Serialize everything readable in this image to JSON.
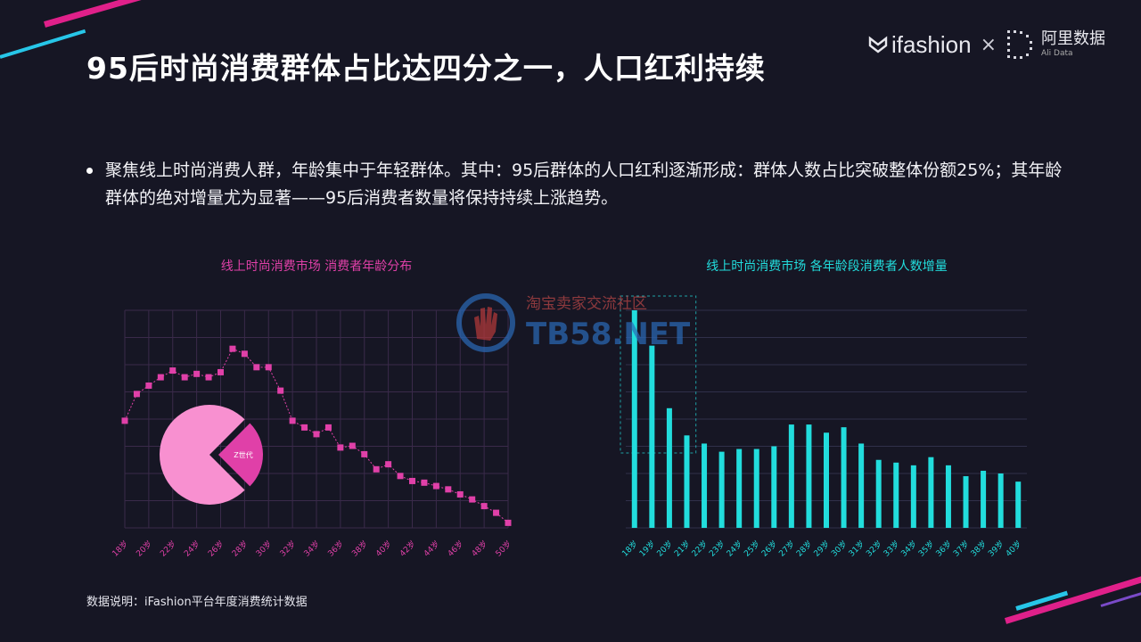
{
  "header": {
    "title": "95后时尚消费群体占比达四分之一，人口红利持续",
    "logo_brand": "ifashion",
    "logo_times": "×",
    "logo_ali_cn": "阿里数据",
    "logo_ali_en": "Ali Data"
  },
  "bullet": "聚焦线上时尚消费人群，年龄集中于年轻群体。其中：95后群体的人口红利逐渐形成：群体人数占比突破整体份额25%；其年龄群体的绝对增量尤为显著——95后消费者数量将保持持续上涨趋势。",
  "watermark": {
    "cn": "淘宝卖家交流社区",
    "en": "TB58.NET"
  },
  "footnote": "数据说明：iFashion平台年度消费统计数据",
  "colors": {
    "pink": "#e040a8",
    "cyan": "#22dddd",
    "background": "#161624"
  },
  "chart_data": [
    {
      "type": "line",
      "title": "线上时尚消费市场 消费者年龄分布",
      "x": [
        18,
        19,
        20,
        21,
        22,
        23,
        24,
        25,
        26,
        27,
        28,
        29,
        30,
        31,
        32,
        33,
        34,
        35,
        36,
        37,
        38,
        39,
        40,
        41,
        42,
        43,
        44,
        45,
        46,
        47,
        48,
        49,
        50
      ],
      "x_tick_labels": [
        "18岁",
        "20岁",
        "22岁",
        "24岁",
        "26岁",
        "28岁",
        "30岁",
        "32岁",
        "34岁",
        "36岁",
        "38岁",
        "40岁",
        "42岁",
        "44岁",
        "46岁",
        "48岁",
        "50岁"
      ],
      "values": [
        6.4,
        8.0,
        8.5,
        9.0,
        9.4,
        9.0,
        9.2,
        9.0,
        9.3,
        10.7,
        10.4,
        9.6,
        9.6,
        8.2,
        6.4,
        6.0,
        5.6,
        6.0,
        4.8,
        4.9,
        4.4,
        3.5,
        3.8,
        3.1,
        2.8,
        2.7,
        2.5,
        2.3,
        2.0,
        1.7,
        1.3,
        0.9,
        0.3
      ],
      "ylim": [
        0,
        13
      ],
      "grid": true,
      "inset_pie": {
        "slices": [
          {
            "label": "",
            "value": 75
          },
          {
            "label": "Z世代",
            "value": 25
          }
        ]
      }
    },
    {
      "type": "bar",
      "title": "线上时尚消费市场 各年龄段消费者人数增量",
      "categories": [
        "18岁",
        "19岁",
        "20岁",
        "21岁",
        "22岁",
        "23岁",
        "24岁",
        "25岁",
        "26岁",
        "27岁",
        "28岁",
        "29岁",
        "30岁",
        "31岁",
        "32岁",
        "33岁",
        "34岁",
        "35岁",
        "36岁",
        "37岁",
        "38岁",
        "39岁",
        "40岁"
      ],
      "values": [
        8.0,
        6.7,
        4.4,
        3.4,
        3.1,
        2.8,
        2.9,
        2.9,
        3.0,
        3.8,
        3.8,
        3.5,
        3.7,
        3.1,
        2.5,
        2.4,
        2.3,
        2.6,
        2.3,
        1.9,
        2.1,
        2.0,
        1.7
      ],
      "ylim": [
        0,
        8
      ],
      "grid": true,
      "highlight": [
        "18岁",
        "19岁",
        "20岁"
      ]
    }
  ]
}
